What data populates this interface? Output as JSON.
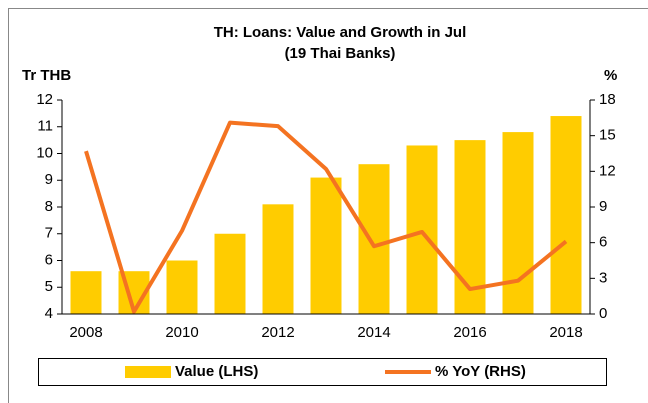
{
  "chart_data": {
    "type": "bar_line",
    "title": "TH: Loans: Value and Growth in Jul",
    "subtitle": "(19 Thai Banks)",
    "y_label": "Tr THB",
    "y2_label": "%",
    "categories": [
      "2008",
      null,
      "2010",
      null,
      "2012",
      null,
      "2014",
      null,
      "2016",
      null,
      "2018"
    ],
    "series": [
      {
        "name": "Value (LHS)",
        "type": "bar",
        "axis": "y",
        "color": "#ffcc00",
        "values": [
          5.6,
          5.6,
          6.0,
          7.0,
          8.1,
          9.1,
          9.6,
          10.3,
          10.5,
          10.8,
          11.4
        ]
      },
      {
        "name": "% YoY (RHS)",
        "type": "line",
        "axis": "y2",
        "color": "#f47321",
        "values": [
          13.7,
          0.2,
          7.0,
          16.1,
          15.8,
          12.2,
          5.7,
          6.9,
          2.1,
          2.8,
          6.1
        ]
      }
    ],
    "ylim": [
      4,
      12
    ],
    "yticks": [
      4,
      5,
      6,
      7,
      8,
      9,
      10,
      11,
      12
    ],
    "y2lim": [
      0,
      18
    ],
    "y2ticks": [
      0,
      3,
      6,
      9,
      12,
      15,
      18
    ],
    "grid": false,
    "legend": "bottom"
  }
}
